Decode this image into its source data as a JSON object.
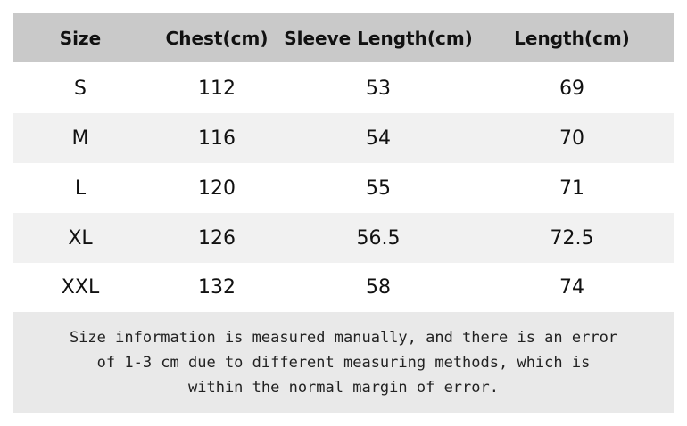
{
  "table": {
    "header": [
      "Size",
      "Chest(cm)",
      "Sleeve Length(cm)",
      "Length(cm)"
    ],
    "rows": [
      [
        "S",
        "112",
        "53",
        "69"
      ],
      [
        "M",
        "116",
        "54",
        "70"
      ],
      [
        "L",
        "120",
        "55",
        "71"
      ],
      [
        "XL",
        "126",
        "56.5",
        "72.5"
      ],
      [
        "XXL",
        "132",
        "58",
        "74"
      ]
    ],
    "note": [
      "Size information is measured manually, and there is an error",
      "of 1-3 cm due to different measuring methods, which is",
      "within the normal margin of error."
    ]
  }
}
